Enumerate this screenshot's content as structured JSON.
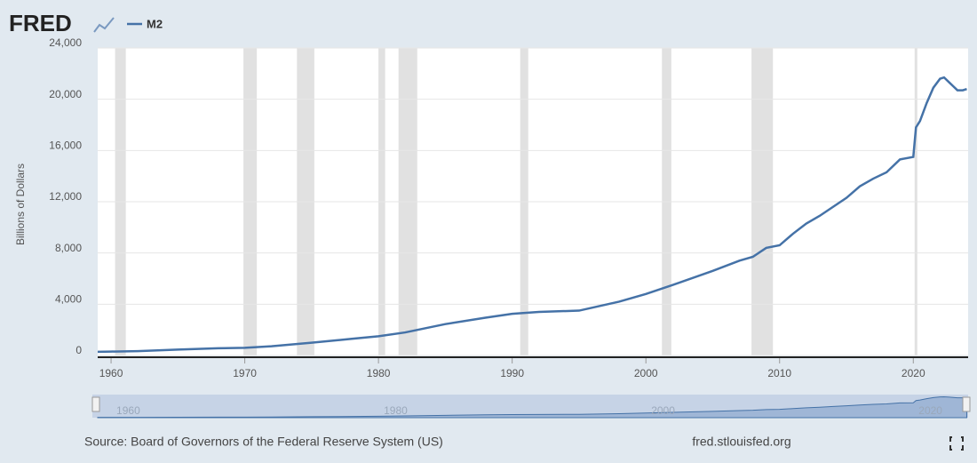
{
  "brand": "FRED",
  "source": "Source: Board of Governors of the Federal Reserve System (US)",
  "site": "fred.stlouisfed.org",
  "chart_data": {
    "type": "line",
    "y_label": "Billions of Dollars",
    "x": [
      1959,
      1960,
      1962,
      1965,
      1968,
      1970,
      1972,
      1975,
      1978,
      1980,
      1982,
      1985,
      1988,
      1990,
      1992,
      1995,
      1998,
      2000,
      2002,
      2005,
      2007,
      2008,
      2009,
      2010,
      2011,
      2012,
      2013,
      2014,
      2015,
      2016,
      2017,
      2018,
      2019,
      2020,
      2020.2,
      2020.5,
      2021,
      2021.5,
      2022,
      2022.3,
      2022.7,
      2023,
      2023.3,
      2023.7,
      2024
    ],
    "series": [
      {
        "name": "M2",
        "color": "#4572a7",
        "values": [
          290,
          305,
          340,
          460,
          560,
          600,
          720,
          1000,
          1300,
          1500,
          1800,
          2450,
          2950,
          3250,
          3400,
          3500,
          4200,
          4800,
          5500,
          6600,
          7400,
          7700,
          8400,
          8600,
          9500,
          10300,
          10900,
          11600,
          12300,
          13200,
          13800,
          14300,
          15300,
          15500,
          17800,
          18300,
          19700,
          20900,
          21600,
          21700,
          21300,
          21000,
          20700,
          20700,
          20800
        ]
      }
    ],
    "recessions": [
      [
        1960.3,
        1961.1
      ],
      [
        1969.9,
        1970.9
      ],
      [
        1973.9,
        1975.2
      ],
      [
        1980.0,
        1980.5
      ],
      [
        1981.5,
        1982.9
      ],
      [
        1990.6,
        1991.2
      ],
      [
        2001.2,
        2001.9
      ],
      [
        2007.9,
        2009.5
      ],
      [
        2020.1,
        2020.3
      ]
    ],
    "xlim": [
      1959,
      2024.1
    ],
    "xticks": [
      1960,
      1970,
      1980,
      1990,
      2000,
      2010,
      2020
    ],
    "ylim": [
      0,
      24000
    ],
    "yticks": [
      0,
      {
        "value": 4000,
        "label": "4,000"
      },
      {
        "value": 8000,
        "label": "8,000"
      },
      {
        "value": 12000,
        "label": "12,000"
      },
      {
        "value": 16000,
        "label": "16,000"
      },
      {
        "value": 20000,
        "label": "20,000"
      },
      {
        "value": 24000,
        "label": "24,000"
      }
    ],
    "navigator_xticks": [
      1960,
      1980,
      2000,
      2020
    ],
    "grid": true
  }
}
